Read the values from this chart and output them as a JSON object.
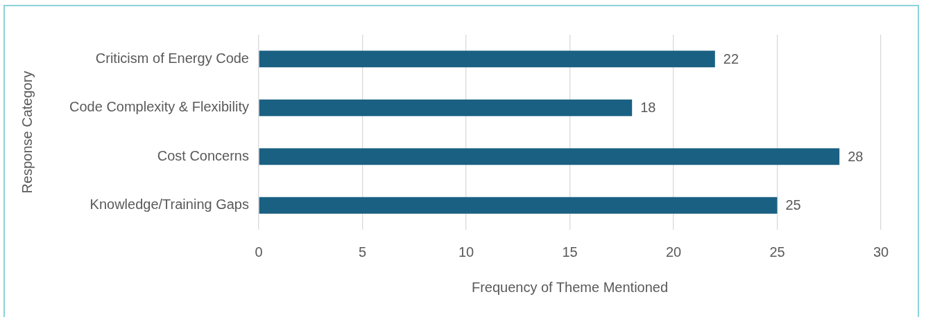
{
  "chart_data": {
    "type": "bar",
    "orientation": "horizontal",
    "xlabel": "Frequency of Theme Mentioned",
    "ylabel": "Response Category",
    "categories": [
      "Criticism of Energy Code",
      "Code Complexity & Flexibility",
      "Cost Concerns",
      "Knowledge/Training Gaps"
    ],
    "values": [
      22,
      18,
      28,
      25
    ],
    "color": "#1a6082",
    "xlim": [
      0,
      30
    ],
    "xticks": [
      0,
      5,
      10,
      15,
      20,
      25,
      30
    ],
    "grid": "x",
    "data_labels": true
  }
}
